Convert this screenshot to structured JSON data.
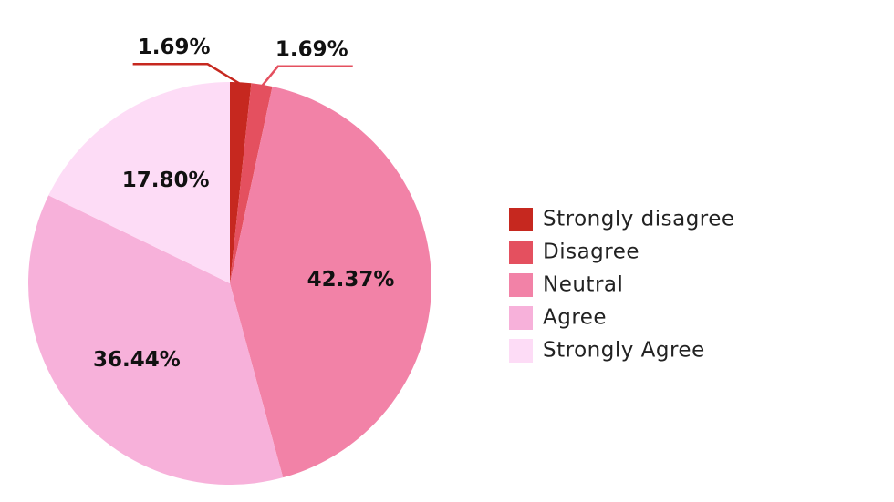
{
  "chart_data": {
    "type": "pie",
    "categories": [
      "Strongly disagree",
      "Disagree",
      "Neutral",
      "Agree",
      "Strongly Agree"
    ],
    "values": [
      1.69,
      1.69,
      42.37,
      36.44,
      17.8
    ],
    "value_labels": [
      "1.69%",
      "1.69%",
      "42.37%",
      "36.44%",
      "17.80%"
    ],
    "colors": [
      "#c6281f",
      "#e4505f",
      "#f282a7",
      "#f7b1da",
      "#fddcf6"
    ],
    "legend": "right"
  }
}
